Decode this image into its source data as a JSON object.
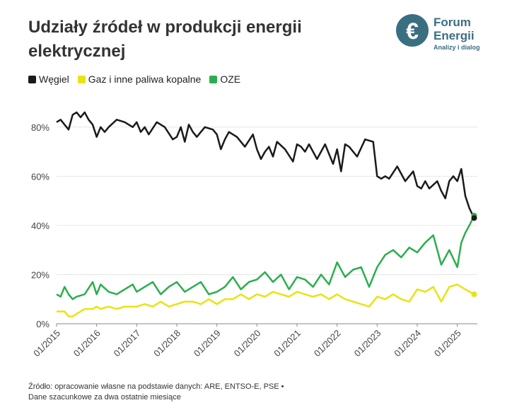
{
  "title": "Udziały źródeł w produkcji energii elektrycznej",
  "logo": {
    "name_line1": "Forum",
    "name_line2": "Energii",
    "tagline": "Analizy i dialog",
    "icon": "forum-energii-logo-icon"
  },
  "legend": [
    {
      "label": "Węgiel",
      "color": "#1a1a1a"
    },
    {
      "label": "Gaz i inne paliwa kopalne",
      "color": "#e8e40f"
    },
    {
      "label": "OZE",
      "color": "#2bae4e"
    }
  ],
  "footer": {
    "line1": "Źródło: opracowanie własne na podstawie danych: ARE, ENTSO-E, PSE •",
    "line2": "Dane szacunkowe za dwa ostatnie miesiące"
  },
  "chart_data": {
    "type": "line",
    "title": "Udziały źródeł w produkcji energii elektrycznej",
    "xlabel": "",
    "ylabel": "",
    "ylim": [
      0,
      90
    ],
    "y_ticks": [
      0,
      20,
      40,
      60,
      80
    ],
    "y_tick_labels": [
      "0%",
      "20%",
      "40%",
      "60%",
      "80%"
    ],
    "x_tick_labels": [
      "01/2015",
      "01/2016",
      "01/2017",
      "01/2018",
      "01/2019",
      "01/2020",
      "01/2021",
      "01/2022",
      "01/2023",
      "01/2024",
      "01/2025"
    ],
    "x_range": [
      2015.0,
      2025.5
    ],
    "grid": true,
    "series": [
      {
        "name": "Węgiel",
        "color": "#1a1a1a",
        "x": [
          2015.0,
          2015.1,
          2015.2,
          2015.3,
          2015.4,
          2015.5,
          2015.6,
          2015.7,
          2015.8,
          2015.9,
          2016.0,
          2016.1,
          2016.2,
          2016.3,
          2016.5,
          2016.7,
          2016.9,
          2017.0,
          2017.1,
          2017.2,
          2017.3,
          2017.5,
          2017.7,
          2017.9,
          2018.0,
          2018.1,
          2018.2,
          2018.3,
          2018.4,
          2018.5,
          2018.7,
          2018.9,
          2019.0,
          2019.1,
          2019.2,
          2019.3,
          2019.5,
          2019.7,
          2019.9,
          2020.0,
          2020.1,
          2020.2,
          2020.3,
          2020.4,
          2020.5,
          2020.7,
          2020.9,
          2021.0,
          2021.1,
          2021.2,
          2021.3,
          2021.5,
          2021.7,
          2021.9,
          2022.0,
          2022.1,
          2022.2,
          2022.3,
          2022.5,
          2022.7,
          2022.9,
          2023.0,
          2023.1,
          2023.2,
          2023.3,
          2023.5,
          2023.7,
          2023.9,
          2024.0,
          2024.1,
          2024.2,
          2024.3,
          2024.5,
          2024.6,
          2024.7,
          2024.8,
          2024.9,
          2025.0,
          2025.1,
          2025.2,
          2025.3,
          2025.42
        ],
        "values": [
          82,
          83,
          81,
          79,
          85,
          86,
          84,
          86,
          83,
          81,
          76,
          80,
          78,
          80,
          83,
          82,
          80,
          82,
          78,
          80,
          77,
          82,
          80,
          75,
          76,
          80,
          74,
          81,
          78,
          76,
          80,
          79,
          77,
          71,
          75,
          78,
          76,
          72,
          77,
          71,
          67,
          70,
          72,
          68,
          74,
          71,
          66,
          73,
          72,
          70,
          73,
          67,
          73,
          65,
          71,
          62,
          73,
          72,
          68,
          75,
          74,
          60,
          59,
          60,
          59,
          64,
          58,
          62,
          56,
          55,
          58,
          55,
          58,
          54,
          51,
          58,
          60,
          58,
          63,
          52,
          47,
          43
        ],
        "end_value": 43
      },
      {
        "name": "Gaz i inne paliwa kopalne",
        "color": "#e8e40f",
        "x": [
          2015.0,
          2015.1,
          2015.2,
          2015.3,
          2015.4,
          2015.5,
          2015.7,
          2015.9,
          2016.0,
          2016.1,
          2016.3,
          2016.5,
          2016.7,
          2016.9,
          2017.0,
          2017.2,
          2017.4,
          2017.6,
          2017.8,
          2018.0,
          2018.2,
          2018.4,
          2018.6,
          2018.8,
          2019.0,
          2019.2,
          2019.4,
          2019.6,
          2019.8,
          2020.0,
          2020.2,
          2020.4,
          2020.6,
          2020.8,
          2021.0,
          2021.2,
          2021.4,
          2021.6,
          2021.8,
          2022.0,
          2022.2,
          2022.4,
          2022.6,
          2022.8,
          2023.0,
          2023.2,
          2023.4,
          2023.6,
          2023.8,
          2024.0,
          2024.2,
          2024.4,
          2024.6,
          2024.8,
          2025.0,
          2025.2,
          2025.42
        ],
        "values": [
          5,
          5,
          5,
          3,
          3,
          4,
          6,
          6,
          7,
          6,
          7,
          6,
          7,
          7,
          7,
          8,
          7,
          9,
          7,
          8,
          9,
          9,
          8,
          10,
          8,
          10,
          10,
          12,
          10,
          12,
          11,
          13,
          12,
          11,
          13,
          12,
          11,
          12,
          10,
          12,
          10,
          9,
          8,
          7,
          11,
          10,
          12,
          10,
          9,
          14,
          13,
          15,
          9,
          15,
          16,
          14,
          12
        ],
        "end_value": 12
      },
      {
        "name": "OZE",
        "color": "#2bae4e",
        "x": [
          2015.0,
          2015.1,
          2015.2,
          2015.3,
          2015.4,
          2015.5,
          2015.7,
          2015.9,
          2016.0,
          2016.1,
          2016.3,
          2016.5,
          2016.7,
          2016.9,
          2017.0,
          2017.2,
          2017.4,
          2017.6,
          2017.8,
          2018.0,
          2018.2,
          2018.4,
          2018.6,
          2018.8,
          2019.0,
          2019.2,
          2019.4,
          2019.6,
          2019.8,
          2020.0,
          2020.2,
          2020.4,
          2020.6,
          2020.8,
          2021.0,
          2021.2,
          2021.4,
          2021.6,
          2021.8,
          2022.0,
          2022.2,
          2022.4,
          2022.6,
          2022.8,
          2023.0,
          2023.2,
          2023.4,
          2023.6,
          2023.8,
          2024.0,
          2024.2,
          2024.4,
          2024.6,
          2024.8,
          2025.0,
          2025.1,
          2025.2,
          2025.3,
          2025.42
        ],
        "values": [
          12,
          11,
          15,
          12,
          10,
          11,
          12,
          17,
          12,
          16,
          13,
          12,
          14,
          16,
          13,
          15,
          17,
          12,
          15,
          17,
          13,
          15,
          17,
          12,
          13,
          15,
          19,
          14,
          17,
          18,
          21,
          17,
          20,
          14,
          19,
          18,
          15,
          20,
          16,
          25,
          19,
          22,
          23,
          15,
          23,
          28,
          30,
          27,
          31,
          29,
          33,
          36,
          24,
          30,
          23,
          33,
          37,
          40,
          44
        ],
        "end_value": 44
      }
    ]
  }
}
